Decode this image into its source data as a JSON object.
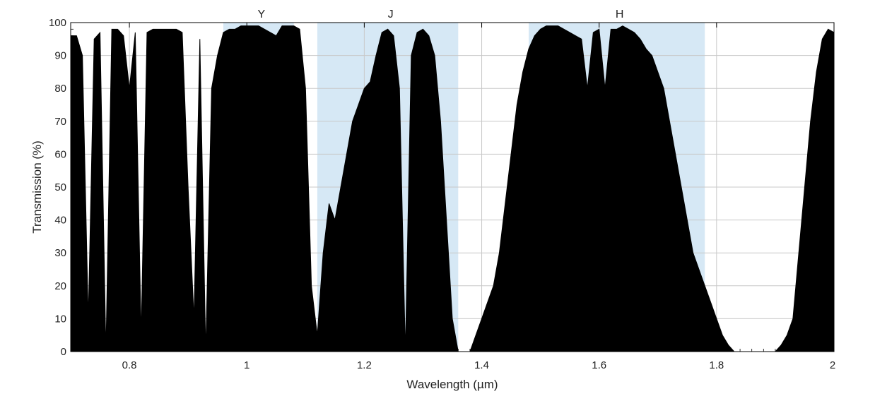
{
  "chart_data": {
    "type": "area",
    "xlabel": "Wavelength (µm)",
    "ylabel": "Transmission (%)",
    "xlim": [
      0.7,
      2.0
    ],
    "ylim": [
      0,
      100
    ],
    "x_ticks": [
      "0.8",
      "1",
      "1.2",
      "1.4",
      "1.6",
      "1.8",
      "2"
    ],
    "x_tick_values": [
      0.8,
      1.0,
      1.2,
      1.4,
      1.6,
      1.8,
      2.0
    ],
    "y_ticks": [
      "0",
      "10",
      "20",
      "30",
      "40",
      "50",
      "60",
      "70",
      "80",
      "90",
      "100"
    ],
    "y_tick_values": [
      0,
      10,
      20,
      30,
      40,
      50,
      60,
      70,
      80,
      90,
      100
    ],
    "grid": true,
    "fill_color": "#000000",
    "band_color": "#d6e8f5",
    "bands": [
      {
        "label": "Y",
        "xmin": 0.96,
        "xmax": 1.08
      },
      {
        "label": "J",
        "xmin": 1.12,
        "xmax": 1.36
      },
      {
        "label": "H",
        "xmin": 1.48,
        "xmax": 1.78
      }
    ],
    "series": [
      {
        "x": [
          0.7,
          0.71,
          0.72,
          0.73,
          0.74,
          0.75,
          0.76,
          0.77,
          0.78,
          0.79,
          0.8,
          0.81,
          0.82,
          0.83,
          0.84,
          0.85,
          0.86,
          0.87,
          0.88,
          0.89,
          0.9,
          0.91,
          0.92,
          0.93,
          0.94,
          0.95,
          0.96,
          0.97,
          0.98,
          0.99,
          1.0,
          1.01,
          1.02,
          1.03,
          1.04,
          1.05,
          1.06,
          1.07,
          1.08,
          1.09,
          1.1,
          1.11,
          1.12,
          1.13,
          1.14,
          1.15,
          1.16,
          1.17,
          1.18,
          1.19,
          1.2,
          1.21,
          1.22,
          1.23,
          1.24,
          1.25,
          1.26,
          1.27,
          1.28,
          1.29,
          1.3,
          1.31,
          1.32,
          1.33,
          1.34,
          1.35,
          1.36,
          1.37,
          1.38,
          1.39,
          1.4,
          1.41,
          1.42,
          1.43,
          1.44,
          1.45,
          1.46,
          1.47,
          1.48,
          1.49,
          1.5,
          1.51,
          1.52,
          1.53,
          1.54,
          1.55,
          1.56,
          1.57,
          1.58,
          1.59,
          1.6,
          1.61,
          1.62,
          1.63,
          1.64,
          1.65,
          1.66,
          1.67,
          1.68,
          1.69,
          1.7,
          1.71,
          1.72,
          1.73,
          1.74,
          1.75,
          1.76,
          1.77,
          1.78,
          1.79,
          1.8,
          1.81,
          1.82,
          1.83,
          1.84,
          1.85,
          1.86,
          1.87,
          1.88,
          1.89,
          1.9,
          1.91,
          1.92,
          1.93,
          1.94,
          1.95,
          1.96,
          1.97,
          1.98,
          1.99,
          2.0
        ],
        "y": [
          96,
          96,
          90,
          10,
          95,
          97,
          0,
          98,
          98,
          96,
          80,
          97,
          5,
          97,
          98,
          98,
          98,
          98,
          98,
          97,
          50,
          10,
          95,
          0,
          80,
          90,
          97,
          98,
          98,
          99,
          99,
          99,
          99,
          98,
          97,
          96,
          99,
          99,
          99,
          98,
          80,
          20,
          5,
          30,
          45,
          40,
          50,
          60,
          70,
          75,
          80,
          82,
          90,
          97,
          98,
          96,
          80,
          0,
          90,
          97,
          98,
          96,
          90,
          70,
          40,
          10,
          0,
          0,
          0,
          5,
          10,
          15,
          20,
          30,
          45,
          60,
          75,
          85,
          92,
          96,
          98,
          99,
          99,
          99,
          98,
          97,
          96,
          95,
          80,
          97,
          98,
          80,
          98,
          98,
          99,
          98,
          97,
          95,
          92,
          90,
          85,
          80,
          70,
          60,
          50,
          40,
          30,
          25,
          20,
          15,
          10,
          5,
          2,
          0,
          0,
          0,
          0,
          0,
          0,
          0,
          0,
          2,
          5,
          10,
          30,
          50,
          70,
          85,
          95,
          98,
          97
        ]
      }
    ]
  }
}
